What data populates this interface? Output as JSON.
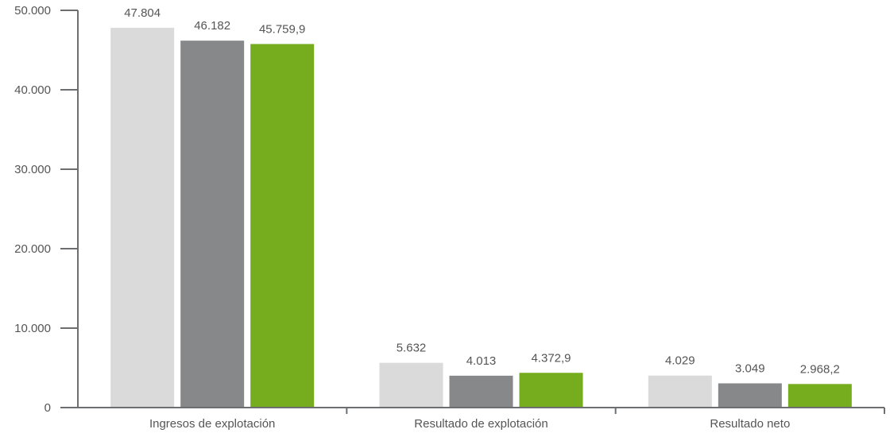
{
  "chart_data": {
    "type": "bar",
    "categories": [
      "Ingresos de explotación",
      "Resultado de explotación",
      "Resultado neto"
    ],
    "series": [
      {
        "values": [
          47804,
          5632,
          4029
        ],
        "labels": [
          "47.804",
          "5.632",
          "4.029"
        ],
        "color": "#dadadb"
      },
      {
        "values": [
          46182,
          4013,
          3049
        ],
        "labels": [
          "46.182",
          "4.013",
          "3.049"
        ],
        "color": "#87888a"
      },
      {
        "values": [
          45759.9,
          4372.9,
          2968.2
        ],
        "labels": [
          "45.759,9",
          "4.372,9",
          "2.968,2"
        ],
        "color": "#76ad1e"
      }
    ],
    "ylim": [
      0,
      50000
    ],
    "yticks": [
      0,
      10000,
      20000,
      30000,
      40000,
      50000
    ],
    "ytick_labels": [
      "0",
      "10.000",
      "20.000",
      "30.000",
      "40.000",
      "50.000"
    ],
    "grid": false,
    "axis_color": "#6d6e70",
    "title": "",
    "xlabel": "",
    "ylabel": ""
  }
}
